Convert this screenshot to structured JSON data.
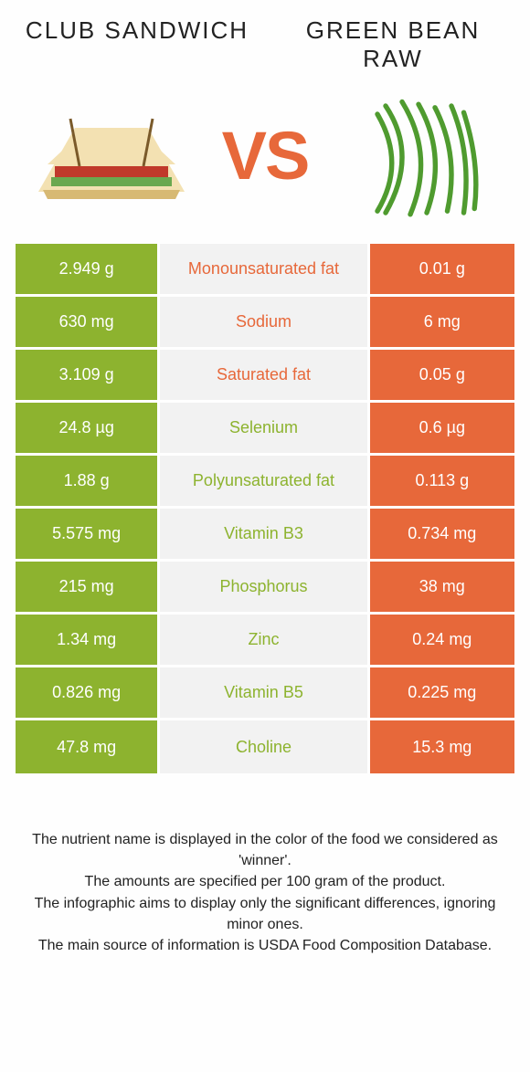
{
  "colors": {
    "left": "#8db32f",
    "right": "#e7683a",
    "mid_bg": "#f2f2f2",
    "mid_text_left_win": "#8db32f",
    "mid_text_right_win": "#e7683a"
  },
  "left_title": "CLUB SANDWICH",
  "right_title": "GREEN BEAN RAW",
  "vs": "VS",
  "rows": [
    {
      "left": "2.949 g",
      "mid": "Monounsaturated fat",
      "right": "0.01 g",
      "winner": "right"
    },
    {
      "left": "630 mg",
      "mid": "Sodium",
      "right": "6 mg",
      "winner": "right"
    },
    {
      "left": "3.109 g",
      "mid": "Saturated fat",
      "right": "0.05 g",
      "winner": "right"
    },
    {
      "left": "24.8 µg",
      "mid": "Selenium",
      "right": "0.6 µg",
      "winner": "left"
    },
    {
      "left": "1.88 g",
      "mid": "Polyunsaturated fat",
      "right": "0.113 g",
      "winner": "left"
    },
    {
      "left": "5.575 mg",
      "mid": "Vitamin B3",
      "right": "0.734 mg",
      "winner": "left"
    },
    {
      "left": "215 mg",
      "mid": "Phosphorus",
      "right": "38 mg",
      "winner": "left"
    },
    {
      "left": "1.34 mg",
      "mid": "Zinc",
      "right": "0.24 mg",
      "winner": "left"
    },
    {
      "left": "0.826 mg",
      "mid": "Vitamin B5",
      "right": "0.225 mg",
      "winner": "left"
    },
    {
      "left": "47.8 mg",
      "mid": "Choline",
      "right": "15.3 mg",
      "winner": "left"
    }
  ],
  "caption": [
    "The nutrient name is displayed in the color of the food we considered as 'winner'.",
    "The amounts are specified per 100 gram of the product.",
    "The infographic aims to display only the significant differences, ignoring minor ones.",
    "The main source of information is USDA Food Composition Database."
  ]
}
